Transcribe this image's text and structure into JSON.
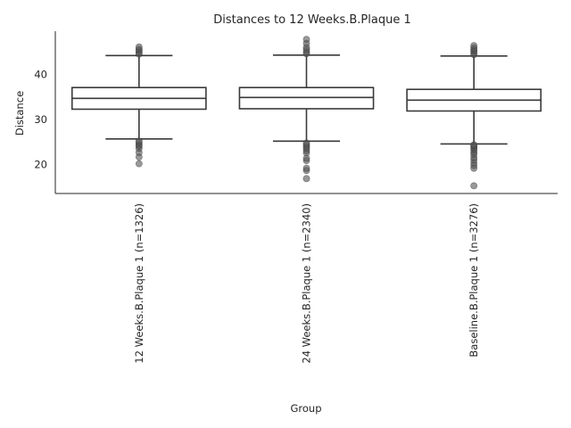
{
  "chart_data": {
    "type": "box",
    "title": "Distances to 12 Weeks.B.Plaque 1",
    "xlabel": "Group",
    "ylabel": "Distance",
    "ylim": [
      13.5,
      49.5
    ],
    "yticks": [
      20,
      30,
      40
    ],
    "grid": false,
    "categories": [
      "12 Weeks.B.Plaque 1 (n=1326)",
      "24 Weeks.B.Plaque 1 (n=2340)",
      "Baseline.B.Plaque 1 (n=3276)"
    ],
    "boxes": [
      {
        "whisker_low": 25.6,
        "q1": 32.2,
        "median": 34.6,
        "q3": 37.0,
        "whisker_high": 44.1,
        "fliers": [
          20.1,
          21.6,
          22.6,
          23.5,
          24.0,
          24.3,
          24.8,
          25.1,
          44.4,
          44.8,
          45.2,
          45.5,
          46.0
        ]
      },
      {
        "whisker_low": 25.1,
        "q1": 32.3,
        "median": 34.8,
        "q3": 37.0,
        "whisker_high": 44.2,
        "fliers": [
          16.8,
          18.6,
          19.1,
          20.8,
          21.3,
          22.5,
          23.0,
          23.5,
          23.9,
          24.3,
          24.7,
          44.5,
          44.9,
          45.4,
          45.9,
          46.8,
          47.7
        ]
      },
      {
        "whisker_low": 24.5,
        "q1": 31.8,
        "median": 34.2,
        "q3": 36.6,
        "whisker_high": 44.0,
        "fliers": [
          15.2,
          19.1,
          19.7,
          20.3,
          21.0,
          21.5,
          22.2,
          22.6,
          23.1,
          23.5,
          23.8,
          24.1,
          24.3,
          44.3,
          44.7,
          45.1,
          45.4,
          45.8,
          46.3
        ]
      }
    ]
  }
}
